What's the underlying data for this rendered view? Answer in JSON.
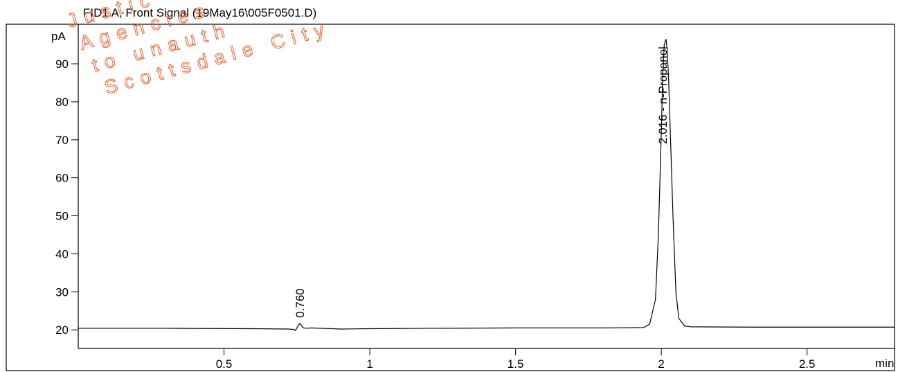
{
  "chart_data": {
    "type": "line",
    "title": "FID1 A, Front Signal (19May16\\005F0501.D)",
    "y_label": "pA",
    "x_label": "min",
    "watermark": [
      "Justic",
      "Agencies",
      "to unauth",
      "Scottsdale City"
    ],
    "x": [
      0,
      0.3,
      0.6,
      0.72,
      0.74,
      0.745,
      0.75,
      0.755,
      0.76,
      0.765,
      0.77,
      0.78,
      0.8,
      0.9,
      1.0,
      1.2,
      1.5,
      1.8,
      1.94,
      1.96,
      1.98,
      1.99,
      2.0,
      2.005,
      2.01,
      2.016,
      2.02,
      2.025,
      2.03,
      2.04,
      2.05,
      2.06,
      2.08,
      2.1,
      2.3,
      2.6,
      2.8
    ],
    "series": [
      {
        "color": "#000000",
        "values": [
          20.4,
          20.4,
          20.3,
          20.2,
          20.1,
          19.8,
          20.5,
          21.2,
          21.7,
          21.2,
          20.6,
          20.4,
          20.5,
          20.2,
          20.3,
          20.4,
          20.5,
          20.5,
          20.6,
          21.5,
          28,
          45,
          72,
          87,
          95,
          96.5,
          94,
          86,
          74,
          50,
          30,
          23,
          21,
          20.8,
          20.7,
          20.7,
          20.7
        ]
      }
    ],
    "peaks": [
      {
        "time": 0.76,
        "label": "0.760"
      },
      {
        "time": 2.016,
        "label": "2.016 -  n-Propanol"
      }
    ],
    "xlim": [
      0,
      2.8
    ],
    "xticks": [
      0.5,
      1,
      1.5,
      2,
      2.5
    ],
    "ylim": [
      15.1,
      100.4
    ],
    "yticks": [
      20,
      30,
      40,
      50,
      60,
      70,
      80,
      90
    ]
  }
}
